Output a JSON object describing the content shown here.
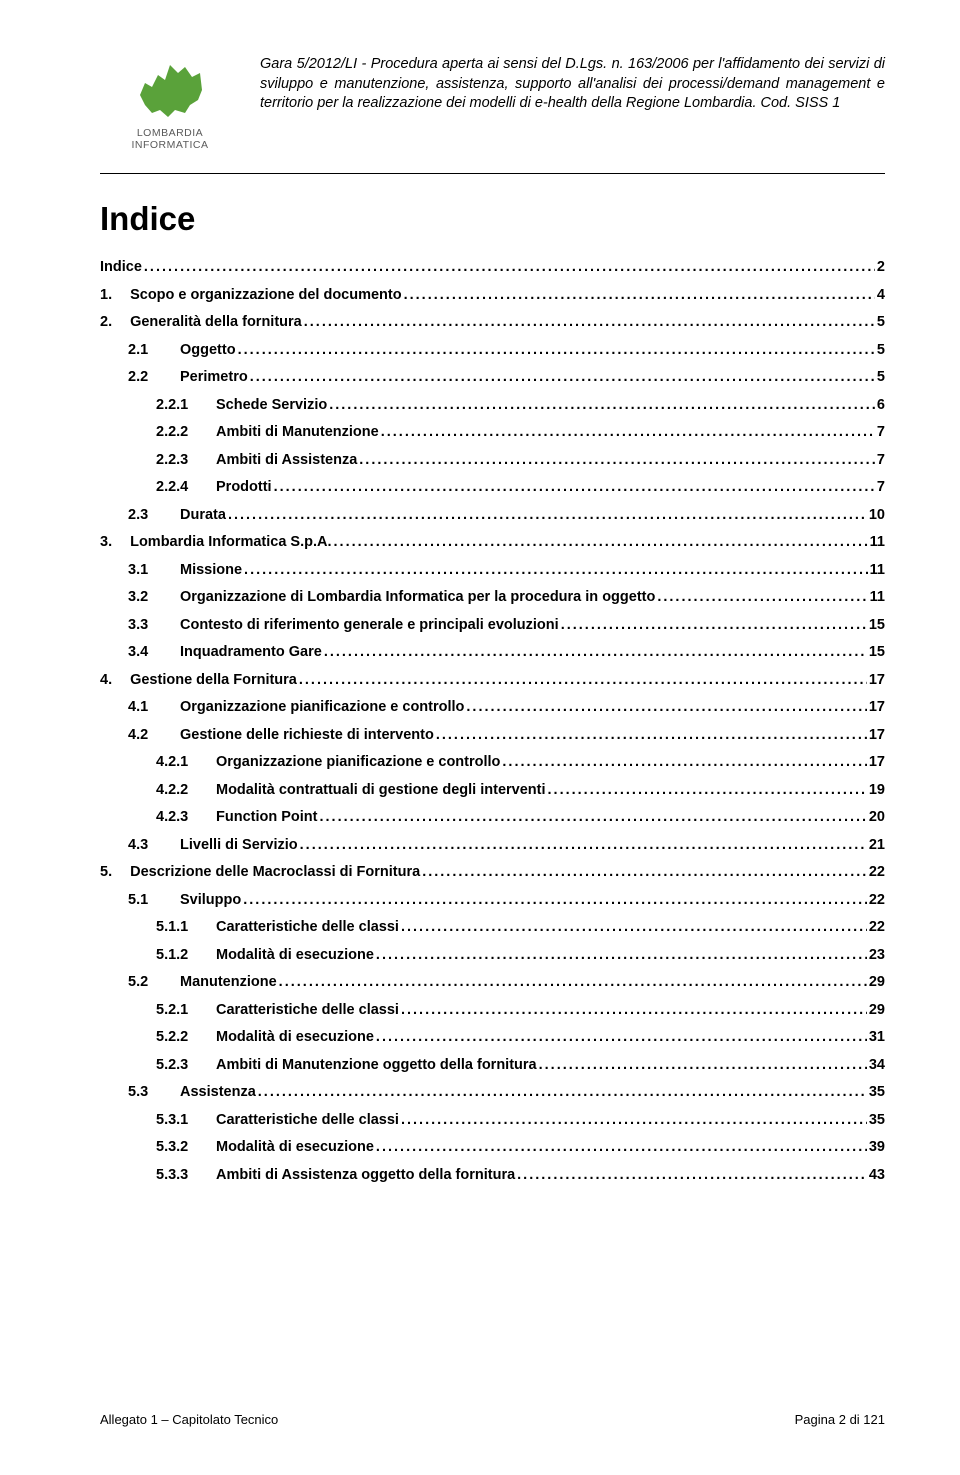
{
  "header": {
    "logo_text": "LOMBARDIA INFORMATICA",
    "logo_color": "#5aa23a",
    "desc": "Gara 5/2012/LI - Procedura aperta ai sensi del D.Lgs. n. 163/2006 per l'affidamento dei servizi di sviluppo e manutenzione, assistenza, supporto all'analisi dei processi/demand management e territorio per la realizzazione dei modelli di e-health della Regione Lombardia. Cod. SISS 1"
  },
  "title": "Indice",
  "toc": [
    {
      "lvl": 0,
      "num": "",
      "label": "Indice",
      "page": "2"
    },
    {
      "lvl": 0,
      "num": "1.",
      "label": "Scopo e organizzazione del documento",
      "page": "4"
    },
    {
      "lvl": 0,
      "num": "2.",
      "label": "Generalità della fornitura",
      "page": "5"
    },
    {
      "lvl": 1,
      "num": "2.1",
      "label": "Oggetto",
      "page": "5"
    },
    {
      "lvl": 1,
      "num": "2.2",
      "label": "Perimetro",
      "page": "5"
    },
    {
      "lvl": 2,
      "num": "2.2.1",
      "label": "Schede Servizio",
      "page": "6"
    },
    {
      "lvl": 2,
      "num": "2.2.2",
      "label": "Ambiti di Manutenzione",
      "page": "7"
    },
    {
      "lvl": 2,
      "num": "2.2.3",
      "label": "Ambiti di Assistenza",
      "page": "7"
    },
    {
      "lvl": 2,
      "num": "2.2.4",
      "label": "Prodotti",
      "page": "7"
    },
    {
      "lvl": 1,
      "num": "2.3",
      "label": "Durata",
      "page": "10"
    },
    {
      "lvl": 0,
      "num": "3.",
      "label": "Lombardia Informatica S.p.A.",
      "page": "11"
    },
    {
      "lvl": 1,
      "num": "3.1",
      "label": "Missione",
      "page": "11"
    },
    {
      "lvl": 1,
      "num": "3.2",
      "label": "Organizzazione di Lombardia Informatica per la procedura in oggetto",
      "page": "11"
    },
    {
      "lvl": 1,
      "num": "3.3",
      "label": "Contesto di riferimento generale e principali evoluzioni",
      "page": "15"
    },
    {
      "lvl": 1,
      "num": "3.4",
      "label": "Inquadramento Gare",
      "page": "15"
    },
    {
      "lvl": 0,
      "num": "4.",
      "label": "Gestione della Fornitura",
      "page": "17"
    },
    {
      "lvl": 1,
      "num": "4.1",
      "label": "Organizzazione pianificazione e controllo",
      "page": "17"
    },
    {
      "lvl": 1,
      "num": "4.2",
      "label": "Gestione delle richieste di intervento",
      "page": "17"
    },
    {
      "lvl": 2,
      "num": "4.2.1",
      "label": "Organizzazione pianificazione e controllo",
      "page": "17"
    },
    {
      "lvl": 2,
      "num": "4.2.2",
      "label": "Modalità contrattuali di gestione degli interventi",
      "page": "19"
    },
    {
      "lvl": 2,
      "num": "4.2.3",
      "label": "Function Point",
      "page": "20"
    },
    {
      "lvl": 1,
      "num": "4.3",
      "label": "Livelli di Servizio",
      "page": "21"
    },
    {
      "lvl": 0,
      "num": "5.",
      "label": "Descrizione delle Macroclassi di Fornitura",
      "page": "22"
    },
    {
      "lvl": 1,
      "num": "5.1",
      "label": "Sviluppo",
      "page": "22"
    },
    {
      "lvl": 2,
      "num": "5.1.1",
      "label": "Caratteristiche delle classi",
      "page": "22"
    },
    {
      "lvl": 2,
      "num": "5.1.2",
      "label": "Modalità di esecuzione",
      "page": "23"
    },
    {
      "lvl": 1,
      "num": "5.2",
      "label": "Manutenzione",
      "page": "29"
    },
    {
      "lvl": 2,
      "num": "5.2.1",
      "label": "Caratteristiche delle classi",
      "page": "29"
    },
    {
      "lvl": 2,
      "num": "5.2.2",
      "label": "Modalità di esecuzione",
      "page": "31"
    },
    {
      "lvl": 2,
      "num": "5.2.3",
      "label": "Ambiti di Manutenzione oggetto della fornitura",
      "page": "34"
    },
    {
      "lvl": 1,
      "num": "5.3",
      "label": "Assistenza",
      "page": "35"
    },
    {
      "lvl": 2,
      "num": "5.3.1",
      "label": "Caratteristiche delle classi",
      "page": "35"
    },
    {
      "lvl": 2,
      "num": "5.3.2",
      "label": "Modalità di esecuzione",
      "page": "39"
    },
    {
      "lvl": 2,
      "num": "5.3.3",
      "label": "Ambiti di Assistenza oggetto della fornitura",
      "page": "43"
    }
  ],
  "footer": {
    "left": "Allegato 1 – Capitolato Tecnico",
    "right": "Pagina 2 di 121"
  }
}
